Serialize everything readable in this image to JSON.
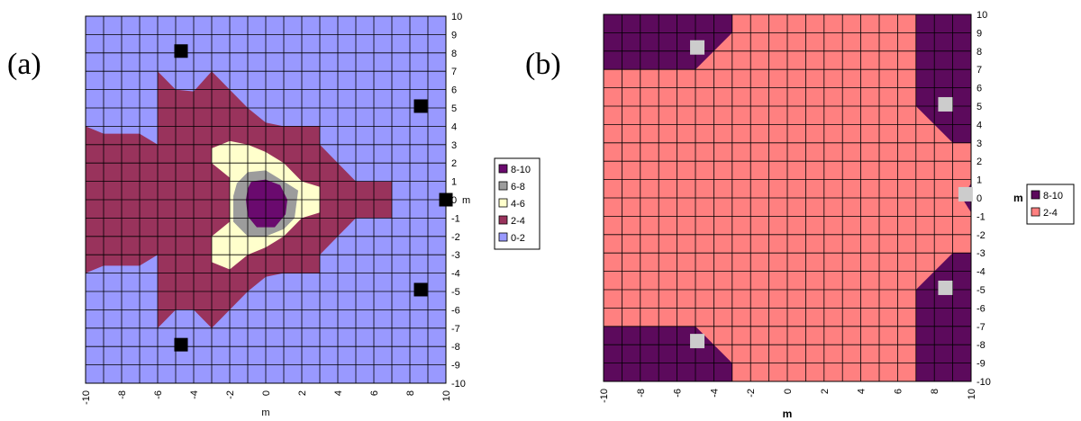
{
  "chart_data": [
    {
      "type": "contour",
      "panel_label": "(a)",
      "xlabel": "m",
      "ylabel": "m",
      "xlim": [
        -10,
        10
      ],
      "ylim": [
        -10,
        10
      ],
      "x_ticks": [
        -10,
        -8,
        -6,
        -4,
        -2,
        0,
        2,
        4,
        6,
        8,
        10
      ],
      "y_ticks": [
        10,
        9,
        8,
        7,
        6,
        5,
        4,
        3,
        2,
        1,
        0,
        -1,
        -2,
        -3,
        -4,
        -5,
        -6,
        -7,
        -8,
        -9,
        -10
      ],
      "grid": true,
      "legend_position": "right",
      "bands": [
        {
          "label": "8-10",
          "color": "#6a0a6e"
        },
        {
          "label": "6-8",
          "color": "#9c9c9c"
        },
        {
          "label": "4-6",
          "color": "#ffffcc"
        },
        {
          "label": "2-4",
          "color": "#99335c"
        },
        {
          "label": "0-2",
          "color": "#9999ff"
        }
      ],
      "markers": [
        {
          "x": -4.7,
          "y": 8.1
        },
        {
          "x": 8.6,
          "y": 5.1
        },
        {
          "x": 10,
          "y": 0
        },
        {
          "x": 8.6,
          "y": -4.9
        },
        {
          "x": -4.7,
          "y": -7.9
        }
      ],
      "marker_color": "#000000"
    },
    {
      "type": "contour",
      "panel_label": "(b)",
      "xlabel": "m",
      "ylabel": "m",
      "xlim": [
        -10,
        10
      ],
      "ylim": [
        -10,
        10
      ],
      "x_ticks": [
        -10,
        -8,
        -6,
        -4,
        -2,
        0,
        2,
        4,
        6,
        8,
        10
      ],
      "y_ticks": [
        10,
        9,
        8,
        7,
        6,
        5,
        4,
        3,
        2,
        1,
        0,
        -1,
        -2,
        -3,
        -4,
        -5,
        -6,
        -7,
        -8,
        -9,
        -10
      ],
      "grid": true,
      "legend_position": "right",
      "bands": [
        {
          "label": "8-10",
          "color": "#5c0a5c"
        },
        {
          "label": "2-4",
          "color": "#ff8080"
        }
      ],
      "markers": [
        {
          "x": -4.9,
          "y": 8.2
        },
        {
          "x": 8.6,
          "y": 5.1
        },
        {
          "x": 9.7,
          "y": 0.2
        },
        {
          "x": 8.6,
          "y": -4.9
        },
        {
          "x": -4.9,
          "y": -7.8
        }
      ],
      "marker_color": "#cccccc"
    }
  ]
}
